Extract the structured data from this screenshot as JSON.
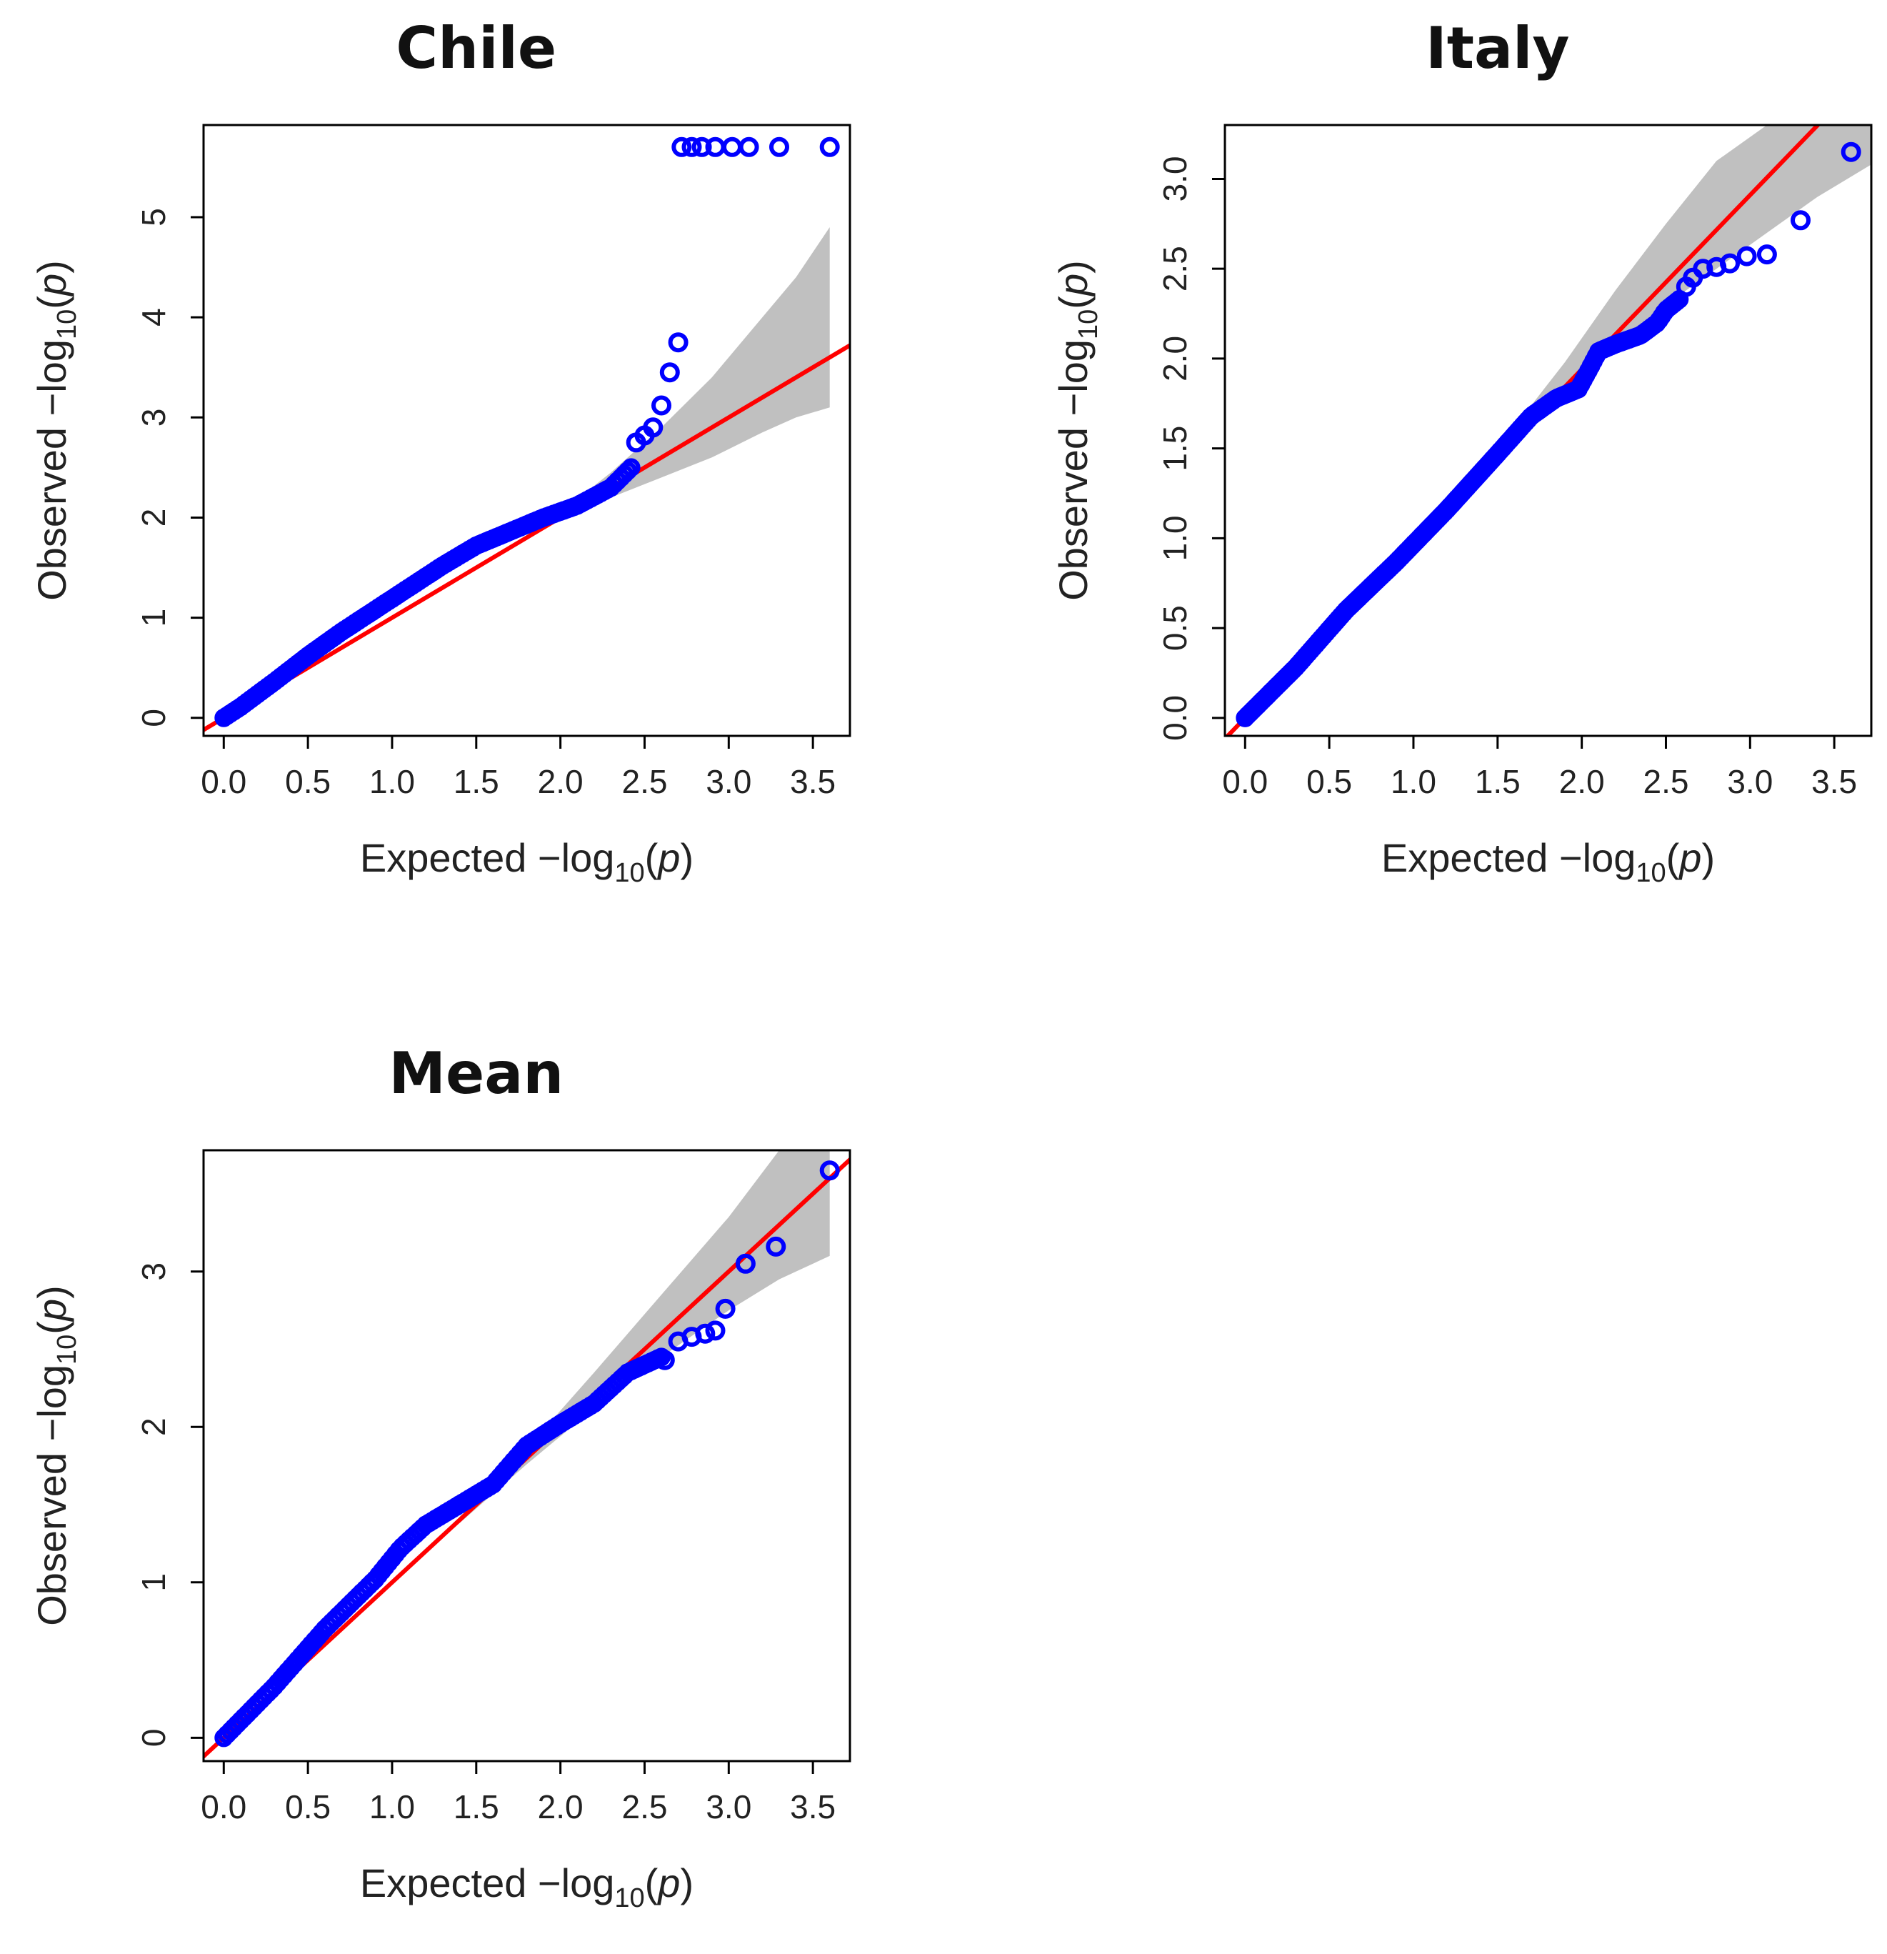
{
  "colors": {
    "points": "#0000ff",
    "line": "#ff0000",
    "band": "#c0c0c0",
    "axis": "#000000"
  },
  "axis_label_parts": {
    "x": {
      "prefix": "Expected  −log",
      "sub": "10",
      "open": "(",
      "var": "p",
      "close": ")"
    },
    "y": {
      "prefix": "Observed  −log",
      "sub": "10",
      "open": "(",
      "var": "p",
      "close": ")"
    }
  },
  "chart_data": [
    {
      "type": "scatter",
      "title": "Chile",
      "xlabel": "Expected −log10(p)",
      "ylabel": "Observed −log10(p)",
      "xlim": [
        -0.12,
        3.72
      ],
      "ylim": [
        -0.18,
        5.92
      ],
      "xticks": [
        0.0,
        0.5,
        1.0,
        1.5,
        2.0,
        2.5,
        3.0,
        3.5
      ],
      "xtick_labels": [
        "0.0",
        "0.5",
        "1.0",
        "1.5",
        "2.0",
        "2.5",
        "3.0",
        "3.5"
      ],
      "yticks": [
        0,
        1,
        2,
        3,
        4,
        5
      ],
      "ytick_labels": [
        "0",
        "1",
        "2",
        "3",
        "4",
        "5"
      ],
      "reference_line": {
        "intercept": 0,
        "slope": 1
      },
      "confidence_band": {
        "x": [
          2.0,
          2.3,
          2.6,
          2.9,
          3.2,
          3.4,
          3.6
        ],
        "lower": [
          2.0,
          2.2,
          2.4,
          2.6,
          2.85,
          3.0,
          3.1
        ],
        "upper": [
          2.05,
          2.45,
          2.9,
          3.4,
          4.0,
          4.4,
          4.9
        ]
      },
      "ref_slope": 1.0,
      "curve": [
        [
          0.0,
          0.0
        ],
        [
          0.1,
          0.11
        ],
        [
          0.3,
          0.36
        ],
        [
          0.5,
          0.62
        ],
        [
          0.7,
          0.86
        ],
        [
          0.9,
          1.08
        ],
        [
          1.1,
          1.3
        ],
        [
          1.3,
          1.52
        ],
        [
          1.5,
          1.72
        ],
        [
          1.7,
          1.86
        ],
        [
          1.9,
          2.0
        ],
        [
          2.1,
          2.12
        ],
        [
          2.3,
          2.3
        ],
        [
          2.42,
          2.5
        ]
      ],
      "curve_step": 0.02,
      "outliers": [
        [
          2.45,
          2.75
        ],
        [
          2.5,
          2.82
        ],
        [
          2.55,
          2.9
        ],
        [
          2.6,
          3.12
        ],
        [
          2.65,
          3.45
        ],
        [
          2.7,
          3.75
        ],
        [
          2.72,
          5.7
        ],
        [
          2.78,
          5.7
        ],
        [
          2.84,
          5.7
        ],
        [
          2.92,
          5.7
        ],
        [
          3.02,
          5.7
        ],
        [
          3.12,
          5.7
        ],
        [
          3.3,
          5.7
        ],
        [
          3.6,
          5.7
        ]
      ]
    },
    {
      "type": "scatter",
      "title": "Italy",
      "xlabel": "Expected −log10(p)",
      "ylabel": "Observed −log10(p)",
      "xlim": [
        -0.12,
        3.72
      ],
      "ylim": [
        -0.1,
        3.3
      ],
      "xticks": [
        0.0,
        0.5,
        1.0,
        1.5,
        2.0,
        2.5,
        3.0,
        3.5
      ],
      "xtick_labels": [
        "0.0",
        "0.5",
        "1.0",
        "1.5",
        "2.0",
        "2.5",
        "3.0",
        "3.5"
      ],
      "yticks": [
        0.0,
        0.5,
        1.0,
        1.5,
        2.0,
        2.5,
        3.0
      ],
      "ytick_labels": [
        "0.0",
        "0.5",
        "1.0",
        "1.5",
        "2.0",
        "2.5",
        "3.0"
      ],
      "reference_line": {
        "intercept": 0,
        "slope": 1
      },
      "confidence_band": {
        "x": [
          1.6,
          1.9,
          2.2,
          2.5,
          2.8,
          3.1,
          3.4,
          3.72
        ],
        "lower": [
          1.58,
          1.82,
          2.05,
          2.3,
          2.5,
          2.7,
          2.9,
          3.08
        ],
        "upper": [
          1.62,
          1.98,
          2.38,
          2.75,
          3.1,
          3.3,
          3.3,
          3.3
        ]
      },
      "ref_slope": 0.97,
      "curve": [
        [
          0.0,
          0.0
        ],
        [
          0.3,
          0.28
        ],
        [
          0.6,
          0.6
        ],
        [
          0.9,
          0.87
        ],
        [
          1.2,
          1.16
        ],
        [
          1.5,
          1.47
        ],
        [
          1.7,
          1.68
        ],
        [
          1.85,
          1.78
        ],
        [
          1.98,
          1.83
        ],
        [
          2.05,
          1.95
        ],
        [
          2.1,
          2.04
        ],
        [
          2.2,
          2.08
        ],
        [
          2.35,
          2.13
        ],
        [
          2.45,
          2.2
        ],
        [
          2.5,
          2.27
        ],
        [
          2.58,
          2.33
        ]
      ],
      "curve_step": 0.015,
      "outliers": [
        [
          2.62,
          2.4
        ],
        [
          2.66,
          2.45
        ],
        [
          2.72,
          2.5
        ],
        [
          2.8,
          2.51
        ],
        [
          2.88,
          2.53
        ],
        [
          2.98,
          2.57
        ],
        [
          3.1,
          2.58
        ],
        [
          3.3,
          2.77
        ],
        [
          3.6,
          3.15
        ]
      ]
    },
    {
      "type": "scatter",
      "title": "Mean",
      "xlabel": "Expected −log10(p)",
      "ylabel": "Observed −log10(p)",
      "xlim": [
        -0.12,
        3.72
      ],
      "ylim": [
        -0.15,
        3.78
      ],
      "xticks": [
        0.0,
        0.5,
        1.0,
        1.5,
        2.0,
        2.5,
        3.0,
        3.5
      ],
      "xtick_labels": [
        "0.0",
        "0.5",
        "1.0",
        "1.5",
        "2.0",
        "2.5",
        "3.0",
        "3.5"
      ],
      "yticks": [
        0,
        1,
        2,
        3
      ],
      "ytick_labels": [
        "0",
        "1",
        "2",
        "3"
      ],
      "reference_line": {
        "intercept": 0,
        "slope": 1
      },
      "confidence_band": {
        "x": [
          1.4,
          1.8,
          2.2,
          2.6,
          3.0,
          3.3,
          3.6
        ],
        "lower": [
          1.38,
          1.76,
          2.12,
          2.45,
          2.75,
          2.95,
          3.1
        ],
        "upper": [
          1.42,
          1.86,
          2.35,
          2.85,
          3.35,
          3.78,
          3.78
        ]
      },
      "ref_slope": 1.0,
      "curve": [
        [
          0.0,
          0.0
        ],
        [
          0.3,
          0.33
        ],
        [
          0.6,
          0.7
        ],
        [
          0.9,
          1.02
        ],
        [
          1.05,
          1.22
        ],
        [
          1.2,
          1.37
        ],
        [
          1.4,
          1.5
        ],
        [
          1.6,
          1.63
        ],
        [
          1.8,
          1.88
        ],
        [
          2.0,
          2.02
        ],
        [
          2.2,
          2.15
        ],
        [
          2.4,
          2.35
        ],
        [
          2.6,
          2.45
        ]
      ],
      "curve_step": 0.02,
      "outliers": [
        [
          2.62,
          2.43
        ],
        [
          2.7,
          2.55
        ],
        [
          2.78,
          2.58
        ],
        [
          2.86,
          2.6
        ],
        [
          2.92,
          2.62
        ],
        [
          2.98,
          2.76
        ],
        [
          3.1,
          3.05
        ],
        [
          3.28,
          3.16
        ],
        [
          3.6,
          3.65
        ]
      ]
    }
  ]
}
